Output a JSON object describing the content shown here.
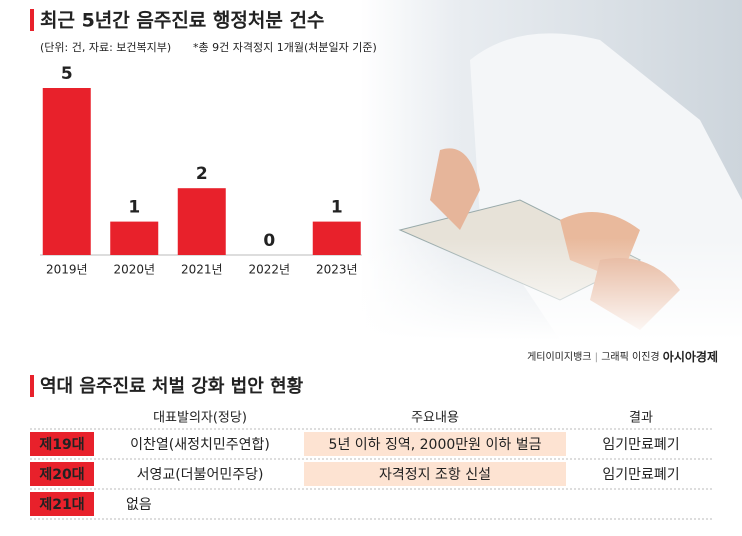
{
  "chart_data": {
    "type": "bar",
    "title": "최근 5년간 음주진료 행정처분 건수",
    "subtitle": "(단위: 건, 자료: 보건복지부)",
    "note": "*총 9건 자격정지 1개월(처분일자 기준)",
    "categories": [
      "2019년",
      "2020년",
      "2021년",
      "2022년",
      "2023년"
    ],
    "values": [
      5,
      1,
      2,
      0,
      1
    ],
    "color": "#e8212b",
    "ylim": [
      0,
      5
    ]
  },
  "credit": {
    "photo": "게티이미지뱅크",
    "graphic": "그래픽 이진경",
    "brand": "아시아경제"
  },
  "table": {
    "title": "역대 음주진료 처벌 강화 법안 현황",
    "header": [
      "대표발의자(정당)",
      "주요내용",
      "결과"
    ],
    "rows": [
      [
        "제19대",
        "이찬열(새정치민주연합)",
        "5년 이하 징역, 2000만원 이하 벌금",
        "임기만료폐기"
      ],
      [
        "제20대",
        "서영교(더불어민주당)",
        "자격정지 조항 신설",
        "임기만료폐기"
      ],
      [
        "제21대",
        "없음"
      ]
    ]
  }
}
